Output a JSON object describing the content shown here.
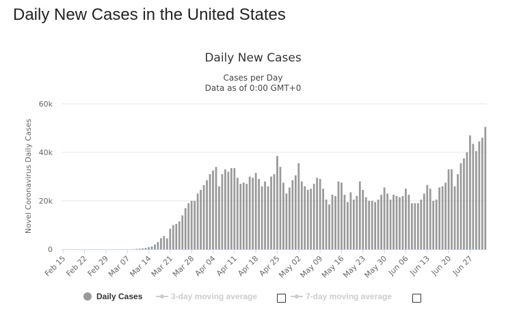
{
  "page": {
    "title": "Daily New Cases in the United States"
  },
  "colors": {
    "bar": "#999999",
    "grid": "#e6e6e6",
    "axis": "#ccd6eb",
    "inactive": "#cccccc"
  },
  "legend": {
    "items": [
      {
        "label": "Daily Cases",
        "active": true,
        "icon": "circle-marker"
      },
      {
        "label": "3-day moving average",
        "active": false,
        "icon": "line-marker"
      },
      {
        "label": "7-day moving average",
        "active": false,
        "icon": "line-marker"
      }
    ]
  },
  "chart_data": {
    "type": "bar",
    "title": "Daily New Cases",
    "subtitle": [
      "Cases per Day",
      "Data as of 0:00 GMT+0"
    ],
    "ylabel": "Novel Coronavirus Daily Cases",
    "xlabel": "",
    "ylim": [
      0,
      60000
    ],
    "yticks": [
      0,
      20000,
      40000,
      60000
    ],
    "ytick_labels": [
      "0",
      "20k",
      "40k",
      "60k"
    ],
    "grid": true,
    "legend_position": "bottom",
    "x_start": "Feb 15",
    "x_end": "Jul 02",
    "xtick_labels": [
      "Feb 15",
      "Feb 22",
      "Feb 29",
      "Mar 07",
      "Mar 14",
      "Mar 21",
      "Mar 28",
      "Apr 04",
      "Apr 11",
      "Apr 18",
      "Apr 25",
      "May 02",
      "May 09",
      "May 16",
      "May 23",
      "May 30",
      "Jun 06",
      "Jun 13",
      "Jun 20",
      "Jun 27"
    ],
    "series": [
      {
        "name": "Daily Cases",
        "values": [
          0,
          0,
          0,
          0,
          0,
          0,
          0,
          0,
          0,
          0,
          0,
          0,
          0,
          0,
          0,
          0,
          0,
          0,
          0,
          0,
          0,
          0,
          0,
          100,
          200,
          300,
          400,
          600,
          900,
          1200,
          2000,
          3000,
          4600,
          5500,
          4500,
          8500,
          10000,
          10500,
          11500,
          14000,
          17000,
          19000,
          20000,
          20000,
          23000,
          24500,
          26500,
          28500,
          31000,
          32500,
          34000,
          26000,
          31000,
          33000,
          32000,
          33500,
          33500,
          29500,
          27000,
          27500,
          27000,
          30000,
          29500,
          31500,
          29000,
          26000,
          28000,
          26000,
          30000,
          31000,
          38500,
          34000,
          27500,
          23000,
          25500,
          28500,
          30500,
          35500,
          28000,
          26000,
          24500,
          25000,
          27000,
          29500,
          29000,
          25000,
          20500,
          18500,
          22500,
          22000,
          28000,
          27500,
          22500,
          19500,
          23500,
          20500,
          22000,
          28000,
          24500,
          21500,
          20000,
          20000,
          19500,
          20500,
          22500,
          25500,
          23000,
          20500,
          22500,
          22000,
          21500,
          22000,
          25000,
          22500,
          19000,
          19000,
          19000,
          20500,
          23000,
          26500,
          25000,
          20000,
          20500,
          25500,
          26000,
          27500,
          33000,
          33000,
          26000,
          31000,
          35500,
          37500,
          40000,
          47000,
          43500,
          40500,
          44500,
          46000,
          50500
        ]
      }
    ]
  }
}
